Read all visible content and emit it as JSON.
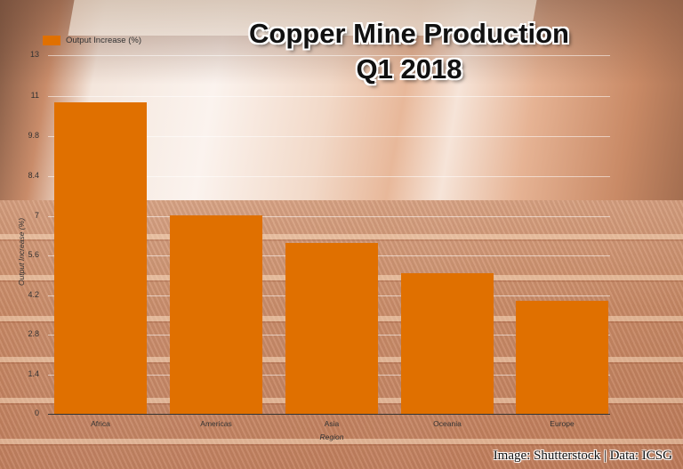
{
  "title_line1": "Copper Mine Production",
  "title_line2": "Q1 2018",
  "credit": "Image: Shutterstock | Data: ICSG",
  "bar_color": "#E07000",
  "legend": {
    "label": "Output Increase (%)"
  },
  "chart_data": {
    "type": "bar",
    "title": "Copper Mine Production Q1 2018",
    "categories": [
      "Africa",
      "Americas",
      "Asia",
      "Oceania",
      "Europe"
    ],
    "series": [
      {
        "name": "Output Increase (%)",
        "values": [
          11.3,
          7.2,
          6.2,
          5.1,
          4.1
        ]
      }
    ],
    "xlabel": "Region",
    "ylabel": "Output Increase (%)",
    "ylim": [
      0,
      13
    ],
    "yticks": [
      "0",
      "1.4",
      "2.8",
      "4.2",
      "5.6",
      "7",
      "8.4",
      "9.8",
      "11",
      "13"
    ],
    "grid": true,
    "legend_position": "top-left"
  }
}
